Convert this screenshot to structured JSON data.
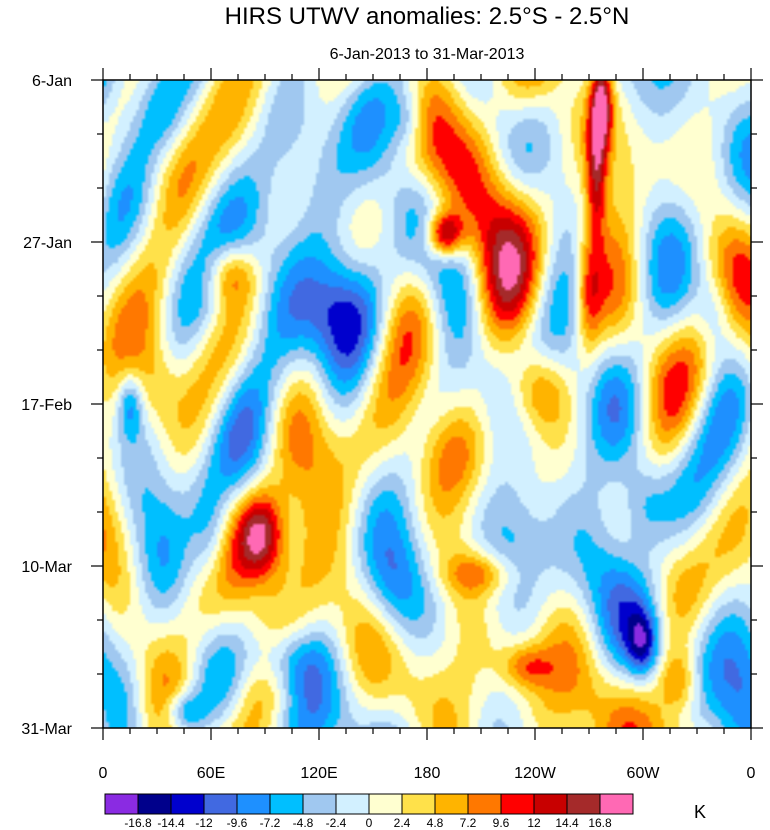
{
  "chart_data": {
    "type": "heatmap",
    "title": "HIRS UTWV anomalies: 2.5°S - 2.5°N",
    "subtitle": "6-Jan-2013 to 31-Mar-2013",
    "xlabel": "",
    "ylabel": "",
    "x_ticks": [
      "0",
      "60E",
      "120E",
      "180",
      "120W",
      "60W",
      "0"
    ],
    "x_tick_longitudes": [
      0,
      60,
      120,
      180,
      240,
      300,
      360
    ],
    "xlim": [
      0,
      360
    ],
    "y_ticks": [
      "6-Jan",
      "27-Jan",
      "17-Feb",
      "10-Mar",
      "31-Mar"
    ],
    "y_tick_days": [
      0,
      21,
      42,
      63,
      84
    ],
    "ylim_days": [
      0,
      84
    ],
    "units": "K",
    "colorbar": {
      "levels": [
        "-16.8",
        "-14.4",
        "-12",
        "-9.6",
        "-7.2",
        "-4.8",
        "-2.4",
        "0",
        "2.4",
        "4.8",
        "7.2",
        "9.6",
        "12",
        "14.4",
        "16.8"
      ],
      "level_values": [
        -16.8,
        -14.4,
        -12,
        -9.6,
        -7.2,
        -4.8,
        -2.4,
        0,
        2.4,
        4.8,
        7.2,
        9.6,
        12,
        14.4,
        16.8
      ],
      "colors": [
        "#8a2be2",
        "#00008b",
        "#0000cd",
        "#4169e1",
        "#1e90ff",
        "#00bfff",
        "#a0c8f0",
        "#d2f0ff",
        "#ffffd0",
        "#ffe14a",
        "#ffb400",
        "#ff7800",
        "#ff0000",
        "#c80000",
        "#a52a2a",
        "#ff69b4"
      ]
    },
    "features": [
      {
        "lon": 88,
        "day": 59,
        "value": 15.5,
        "sx": 9,
        "sy": 4
      },
      {
        "lon": 195,
        "day": 49,
        "value": 11,
        "sx": 14,
        "sy": 5
      },
      {
        "lon": 215,
        "day": 30,
        "value": 8,
        "sx": 16,
        "sy": 6
      },
      {
        "lon": 240,
        "day": 40,
        "value": 12,
        "sx": 12,
        "sy": 4
      },
      {
        "lon": 190,
        "day": 20,
        "value": 17,
        "sx": 7,
        "sy": 2
      },
      {
        "lon": 277,
        "day": 3,
        "value": 16,
        "sx": 4,
        "sy": 4
      },
      {
        "lon": 274,
        "day": 12,
        "value": 12,
        "sx": 4,
        "sy": 6
      },
      {
        "lon": 270,
        "day": 28,
        "value": 8,
        "sx": 5,
        "sy": 6
      },
      {
        "lon": 210,
        "day": 64,
        "value": 8,
        "sx": 14,
        "sy": 2
      },
      {
        "lon": 235,
        "day": 76,
        "value": 8,
        "sx": 10,
        "sy": 2
      },
      {
        "lon": 70,
        "day": 25,
        "value": 10,
        "sx": 10,
        "sy": 3
      },
      {
        "lon": 30,
        "day": 40,
        "value": 6,
        "sx": 10,
        "sy": 5
      },
      {
        "lon": 320,
        "day": 78,
        "value": 9,
        "sx": 8,
        "sy": 3
      },
      {
        "lon": 170,
        "day": 5,
        "value": -7,
        "sx": 8,
        "sy": 3
      },
      {
        "lon": 30,
        "day": 5,
        "value": -6,
        "sx": 12,
        "sy": 4
      },
      {
        "lon": 130,
        "day": 30,
        "value": -7,
        "sx": 14,
        "sy": 5
      },
      {
        "lon": 60,
        "day": 60,
        "value": -8,
        "sx": 8,
        "sy": 5
      },
      {
        "lon": 300,
        "day": 55,
        "value": -8,
        "sx": 10,
        "sy": 4
      },
      {
        "lon": 45,
        "day": 82,
        "value": -10,
        "sx": 8,
        "sy": 2
      },
      {
        "lon": 340,
        "day": 30,
        "value": -8,
        "sx": 8,
        "sy": 4
      },
      {
        "lon": 100,
        "day": 75,
        "value": -7,
        "sx": 14,
        "sy": 3
      },
      {
        "lon": 300,
        "day": 73,
        "value": -11,
        "sx": 6,
        "sy": 3
      },
      {
        "lon": 15,
        "day": 42,
        "value": -9,
        "sx": 5,
        "sy": 3
      },
      {
        "lon": 160,
        "day": 66,
        "value": -8,
        "sx": 12,
        "sy": 5
      }
    ]
  }
}
